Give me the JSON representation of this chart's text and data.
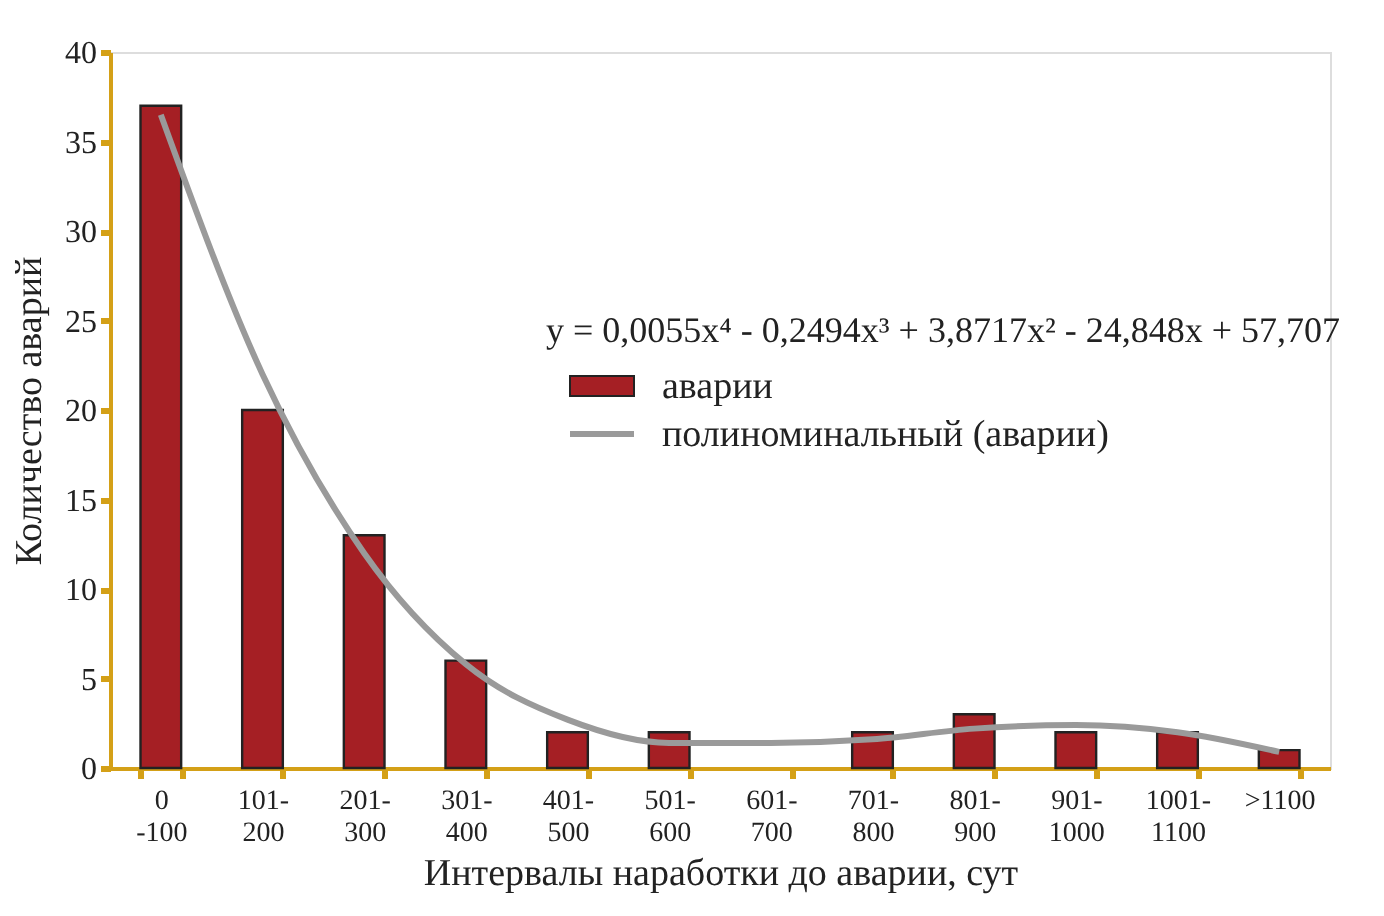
{
  "chart_data": {
    "type": "bar",
    "xlabel": "Интервалы наработки до аварии, сут",
    "ylabel": "Количество аварий",
    "categories": [
      "0 -100",
      "101- 200",
      "201- 300",
      "301- 400",
      "401- 500",
      "501- 600",
      "601- 700",
      "701- 800",
      "801- 900",
      "901- 1000",
      "1001- 1100",
      ">1100"
    ],
    "series": [
      {
        "name": "аварии",
        "color": "#a51f24",
        "values": [
          37,
          20,
          13,
          6,
          2,
          2,
          0,
          2,
          3,
          2,
          2,
          1
        ]
      },
      {
        "name": "полиноминальный (аварии)",
        "type": "line",
        "color": "#9a9a9a",
        "values": [
          36.5,
          22,
          12,
          5.8,
          2.7,
          1.4,
          1.4,
          1.6,
          2.2,
          2.4,
          2.0,
          0.9
        ]
      }
    ],
    "ylim": [
      0,
      40
    ],
    "yticks": [
      0,
      5,
      10,
      15,
      20,
      25,
      30,
      35,
      40
    ],
    "annotations": [
      "y = 0,0055x⁴ - 0,2494x³ + 3,8717x² - 24,848x + 57,707"
    ],
    "legend": "right",
    "grid": false
  }
}
